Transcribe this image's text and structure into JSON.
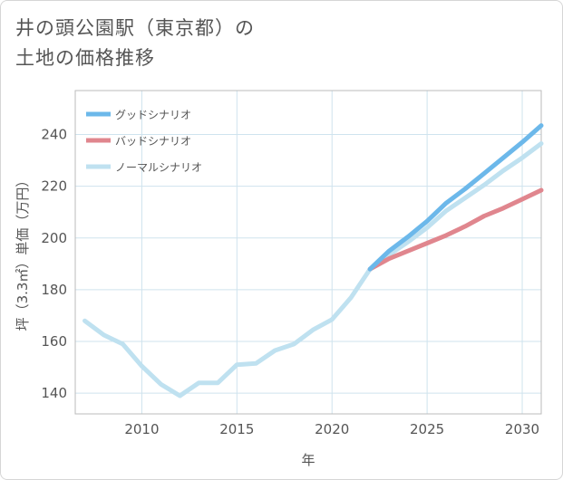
{
  "title": {
    "line1": "井の頭公園駅（東京都）の",
    "line2": "土地の価格推移"
  },
  "chart_data": {
    "type": "line",
    "xlabel": "年",
    "ylabel": "坪（3.3㎡）単価（万円）",
    "xlim": [
      2006.5,
      2031
    ],
    "ylim": [
      132,
      257
    ],
    "x_ticks": [
      2010,
      2015,
      2020,
      2025,
      2030
    ],
    "y_ticks": [
      140,
      160,
      180,
      200,
      220,
      240
    ],
    "grid": true,
    "legend_position": "top-left",
    "series": [
      {
        "name": "グッドシナリオ",
        "color": "#6cb8ea",
        "x": [
          2022,
          2023,
          2024,
          2025,
          2026,
          2027,
          2028,
          2029,
          2030,
          2031
        ],
        "values": [
          188,
          195,
          200.5,
          206.5,
          213.5,
          219,
          225,
          231,
          237,
          243.5
        ]
      },
      {
        "name": "バッドシナリオ",
        "color": "#e0868e",
        "x": [
          2022,
          2023,
          2024,
          2025,
          2026,
          2027,
          2028,
          2029,
          2030,
          2031
        ],
        "values": [
          188,
          192,
          195,
          198,
          201,
          204.5,
          208.5,
          211.5,
          215,
          218.5
        ]
      },
      {
        "name": "ノーマルシナリオ",
        "color": "#bfe1f0",
        "x": [
          2007,
          2008,
          2009,
          2010,
          2011,
          2012,
          2013,
          2014,
          2015,
          2016,
          2017,
          2018,
          2019,
          2020,
          2021,
          2022,
          2023,
          2024,
          2025,
          2026,
          2027,
          2028,
          2029,
          2030,
          2031
        ],
        "values": [
          168,
          162.5,
          159,
          150.5,
          143.5,
          139,
          144,
          144,
          151,
          151.5,
          156.5,
          159,
          164.5,
          168.5,
          177,
          188,
          193.5,
          198.5,
          204,
          210.5,
          215.5,
          220.5,
          226,
          231,
          236.5
        ]
      }
    ]
  }
}
